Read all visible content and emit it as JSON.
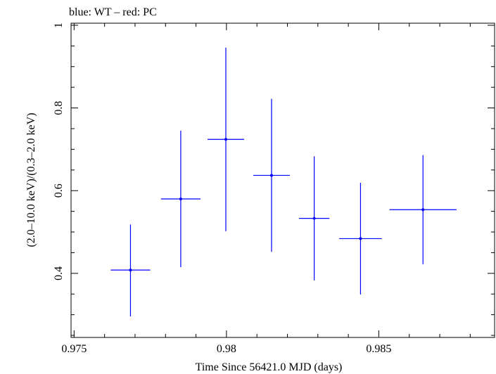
{
  "chart_data": {
    "type": "scatter",
    "title": "blue: WT – red: PC",
    "xlabel": "Time Since 56421.0 MJD (days)",
    "ylabel": "(2.0–10.0 keV)/(0.3–2.0 keV)",
    "xlim": [
      0.9749,
      0.9888
    ],
    "ylim": [
      0.245,
      1.005
    ],
    "x_ticks": [
      0.975,
      0.98,
      0.985
    ],
    "x_tick_labels": [
      "0.975",
      "0.98",
      "0.985"
    ],
    "y_ticks": [
      0.4,
      0.6,
      0.8,
      1.0
    ],
    "y_tick_labels": [
      "0.4",
      "0.6",
      "0.8",
      "1"
    ],
    "grid": false,
    "series": [
      {
        "name": "WT",
        "color": "#0000ff",
        "points": [
          {
            "x": 0.97685,
            "xerr": 0.00065,
            "y": 0.408,
            "yerr_low": 0.112,
            "yerr_high": 0.11
          },
          {
            "x": 0.9785,
            "xerr": 0.00065,
            "y": 0.58,
            "yerr_low": 0.165,
            "yerr_high": 0.165
          },
          {
            "x": 0.97998,
            "xerr": 0.0006,
            "y": 0.724,
            "yerr_low": 0.222,
            "yerr_high": 0.222
          },
          {
            "x": 0.98148,
            "xerr": 0.0006,
            "y": 0.637,
            "yerr_low": 0.185,
            "yerr_high": 0.185
          },
          {
            "x": 0.98288,
            "xerr": 0.0005,
            "y": 0.533,
            "yerr_low": 0.15,
            "yerr_high": 0.15
          },
          {
            "x": 0.9844,
            "xerr": 0.0007,
            "y": 0.484,
            "yerr_low": 0.135,
            "yerr_high": 0.135
          },
          {
            "x": 0.98645,
            "xerr": 0.0011,
            "y": 0.554,
            "yerr_low": 0.132,
            "yerr_high": 0.132
          }
        ]
      }
    ]
  }
}
